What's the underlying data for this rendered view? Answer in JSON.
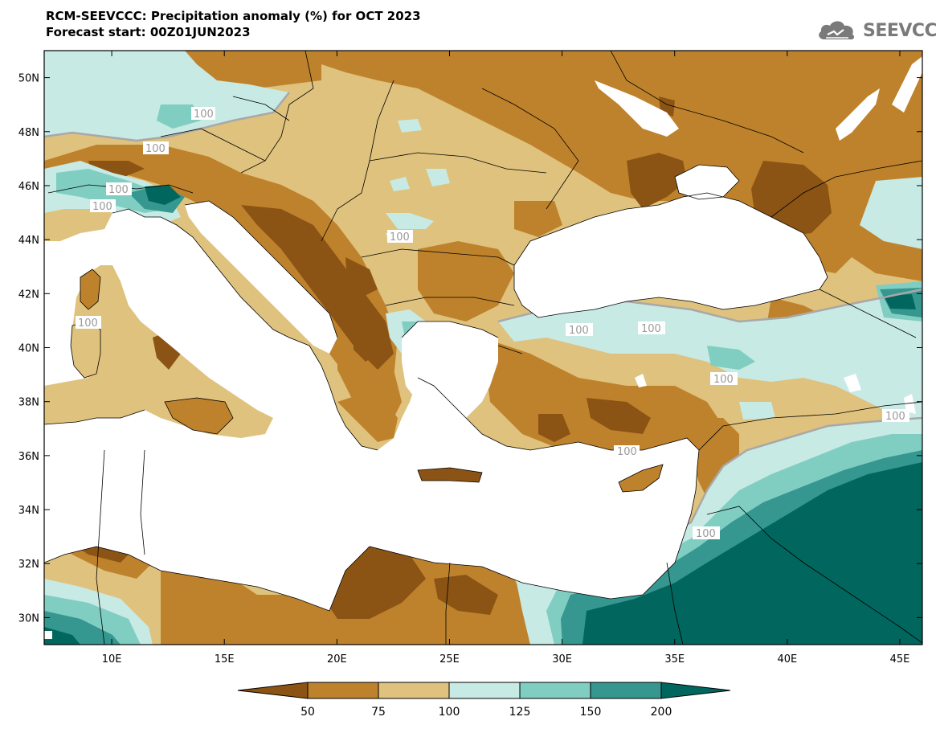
{
  "header": {
    "title": "RCM-SEEVCCC: Precipitation anomaly (%) for OCT 2023",
    "subtitle": "Forecast start: 00Z01JUN2023"
  },
  "logo": {
    "text": "SEEVCCC",
    "icon": "cloud-icon",
    "color": "#7a7a7a"
  },
  "map": {
    "lon_range": [
      7,
      46
    ],
    "lat_range": [
      29,
      51
    ],
    "lon_ticks": [
      "10E",
      "15E",
      "20E",
      "25E",
      "30E",
      "35E",
      "40E",
      "45E"
    ],
    "lat_ticks": [
      "30N",
      "32N",
      "34N",
      "36N",
      "38N",
      "40N",
      "42N",
      "44N",
      "46N",
      "48N",
      "50N"
    ],
    "contour_labels": [
      "100",
      "100",
      "100",
      "100",
      "100",
      "100",
      "100",
      "100",
      "100",
      "100",
      "100",
      "100"
    ]
  },
  "colorbar": {
    "ticks": [
      "50",
      "75",
      "100",
      "125",
      "150",
      "200"
    ],
    "colors": [
      "#8c5414",
      "#bf822c",
      "#dfc27d",
      "#c7eae5",
      "#80cdc1",
      "#35978f",
      "#01665e"
    ]
  }
}
